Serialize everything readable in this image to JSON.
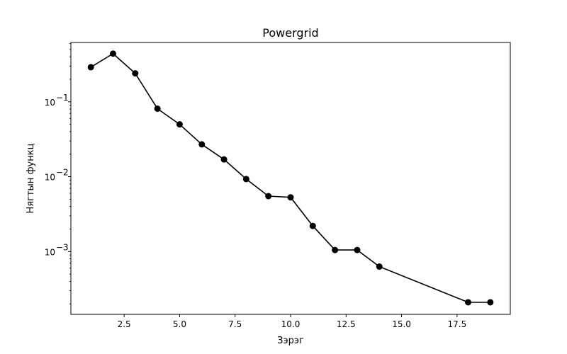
{
  "chart_data": {
    "type": "line",
    "title": "Powergrid",
    "xlabel": "Зэрэг",
    "ylabel": "Нягтын функц",
    "yscale": "log",
    "xlim": [
      0.1,
      19.9
    ],
    "ylim": [
      0.000145,
      0.62
    ],
    "grid": false,
    "x_ticks": [
      2.5,
      5.0,
      7.5,
      10.0,
      12.5,
      15.0,
      17.5
    ],
    "x_tick_labels": [
      "2.5",
      "5.0",
      "7.5",
      "10.0",
      "12.5",
      "15.0",
      "17.5"
    ],
    "y_ticks": [
      0.1,
      0.01,
      0.001
    ],
    "y_tick_labels": [
      {
        "base": "10",
        "exp": "−1"
      },
      {
        "base": "10",
        "exp": "−2"
      },
      {
        "base": "10",
        "exp": "−3"
      }
    ],
    "series": [
      {
        "color": "#000000",
        "marker": "circle",
        "x": [
          1,
          2,
          3,
          4,
          5,
          6,
          7,
          8,
          9,
          10,
          11,
          12,
          13,
          14,
          18,
          19
        ],
        "y": [
          0.29,
          0.44,
          0.24,
          0.081,
          0.05,
          0.027,
          0.017,
          0.0093,
          0.0055,
          0.0053,
          0.0022,
          0.00105,
          0.00105,
          0.00063,
          0.00021,
          0.00021
        ]
      }
    ]
  }
}
